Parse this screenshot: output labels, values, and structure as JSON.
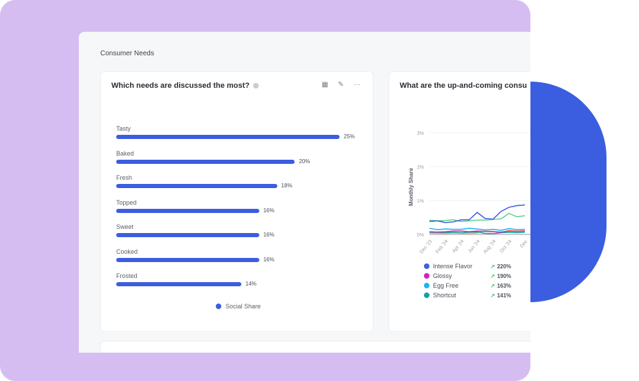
{
  "section": {
    "title": "Consumer Needs"
  },
  "card1": {
    "title": "Which needs are discussed the most?",
    "tools": [
      "chart-icon",
      "edit-icon",
      "more-icon"
    ],
    "legend": "Social Share"
  },
  "chart_data": [
    {
      "type": "bar",
      "orientation": "horizontal",
      "categories": [
        "Tasty",
        "Baked",
        "Fresh",
        "Topped",
        "Sweet",
        "Cooked",
        "Frosted"
      ],
      "values": [
        25,
        20,
        18,
        16,
        16,
        16,
        14
      ],
      "labels": [
        "25%",
        "20%",
        "18%",
        "16%",
        "16%",
        "16%",
        "14%"
      ],
      "series": [
        {
          "name": "Social Share",
          "color": "#3c5ddf"
        }
      ]
    },
    {
      "type": "line",
      "ylabel": "Monthly Share",
      "yticks": [
        "0%",
        "1%",
        "2%",
        "3%"
      ],
      "ylim": [
        0,
        3
      ],
      "xticks": [
        "Dec '23",
        "Feb '24",
        "Apr '24",
        "Jun '24",
        "Aug '24",
        "Oct '24",
        "Dec"
      ],
      "series": [
        {
          "name": "Intense Flavor",
          "color": "#3d5fe0",
          "values": [
            0.38,
            0.4,
            0.35,
            0.37,
            0.43,
            0.43,
            0.65,
            0.47,
            0.45,
            0.68,
            0.8,
            0.85,
            0.87
          ]
        },
        {
          "color": "#5fd08a",
          "values": [
            0.42,
            0.4,
            0.41,
            0.43,
            0.38,
            0.4,
            0.42,
            0.42,
            0.44,
            0.46,
            0.62,
            0.52,
            0.55
          ]
        },
        {
          "name": "Egg Free",
          "color": "#1cb3f5",
          "values": [
            0.18,
            0.14,
            0.16,
            0.15,
            0.15,
            0.18,
            0.16,
            0.13,
            0.15,
            0.12,
            0.17,
            0.14,
            0.15
          ]
        },
        {
          "name": "Glossy",
          "color": "#d91fc0",
          "values": [
            0.08,
            0.07,
            0.08,
            0.1,
            0.1,
            0.08,
            0.1,
            0.09,
            0.08,
            0.07,
            0.1,
            0.09,
            0.1
          ]
        },
        {
          "name": "Shortcut",
          "color": "#0ea3a8",
          "values": [
            0.06,
            0.06,
            0.05,
            0.06,
            0.05,
            0.06,
            0.07,
            0.03,
            0.02,
            0.05,
            0.06,
            0.05,
            0.06
          ]
        },
        {
          "color": "#f6b733",
          "values": [
            0.04,
            0.03,
            0.02,
            0.04,
            0.03,
            0.02,
            0.04,
            0.1,
            0.09,
            0.05,
            0.12,
            0.1,
            0.11
          ]
        }
      ]
    }
  ],
  "card2": {
    "title": "What are the up-and-coming consu",
    "legend": [
      {
        "name": "Intense Flavor",
        "color": "#3d5fe0",
        "growth": "220%"
      },
      {
        "name": "Glossy",
        "color": "#d91fc0",
        "growth": "190%"
      },
      {
        "name": "Egg Free",
        "color": "#1cb3f5",
        "growth": "163%"
      },
      {
        "name": "Shortcut",
        "color": "#0ea3a8",
        "growth": "141%"
      }
    ]
  }
}
